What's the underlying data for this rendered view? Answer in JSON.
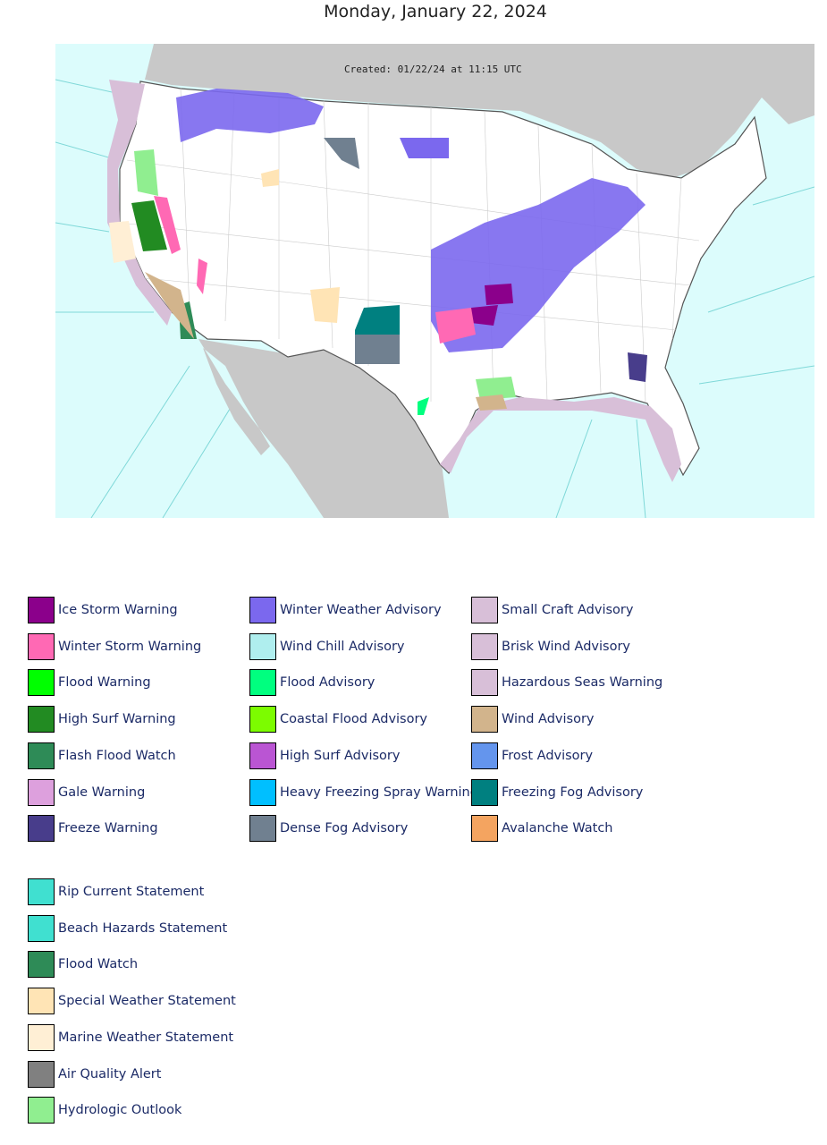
{
  "header": {
    "title": "Monday, January 22, 2024"
  },
  "map": {
    "caption": "Created: 01/22/24 at 11:15 UTC"
  },
  "legend_main": [
    {
      "label": "Ice Storm Warning",
      "color": "#8B008B"
    },
    {
      "label": "Winter Storm Warning",
      "color": "#FF69B4"
    },
    {
      "label": "Flood Warning",
      "color": "#00FF00"
    },
    {
      "label": "High Surf Warning",
      "color": "#228B22"
    },
    {
      "label": "Flash Flood Watch",
      "color": "#2E8B57"
    },
    {
      "label": "Gale Warning",
      "color": "#DDA0DD"
    },
    {
      "label": "Freeze Warning",
      "color": "#483D8B"
    },
    {
      "label": "Winter Weather Advisory",
      "color": "#7B68EE"
    },
    {
      "label": "Wind Chill Advisory",
      "color": "#AFEEEE"
    },
    {
      "label": "Flood Advisory",
      "color": "#00FF7F"
    },
    {
      "label": "Coastal Flood Advisory",
      "color": "#7CFC00"
    },
    {
      "label": "High Surf Advisory",
      "color": "#BA55D3"
    },
    {
      "label": "Heavy Freezing Spray Warning",
      "color": "#00BFFF"
    },
    {
      "label": "Dense Fog Advisory",
      "color": "#708090"
    },
    {
      "label": "Small Craft Advisory",
      "color": "#D8BFD8"
    },
    {
      "label": "Brisk Wind Advisory",
      "color": "#D8BFD8"
    },
    {
      "label": "Hazardous Seas Warning",
      "color": "#D8BFD8"
    },
    {
      "label": "Wind Advisory",
      "color": "#D2B48C"
    },
    {
      "label": "Frost Advisory",
      "color": "#6495ED"
    },
    {
      "label": "Freezing Fog Advisory",
      "color": "#008080"
    },
    {
      "label": "Avalanche Watch",
      "color": "#F4A460"
    }
  ],
  "legend_extra": [
    {
      "label": "Rip Current Statement",
      "color": "#40E0D0"
    },
    {
      "label": "Beach Hazards Statement",
      "color": "#40E0D0"
    },
    {
      "label": "Flood Watch",
      "color": "#2E8B57"
    },
    {
      "label": "Special Weather Statement",
      "color": "#FFE4B5"
    },
    {
      "label": "Marine Weather Statement",
      "color": "#FFEFD5"
    },
    {
      "label": "Air Quality Alert",
      "color": "#808080"
    },
    {
      "label": "Hydrologic Outlook",
      "color": "#90EE90"
    }
  ]
}
